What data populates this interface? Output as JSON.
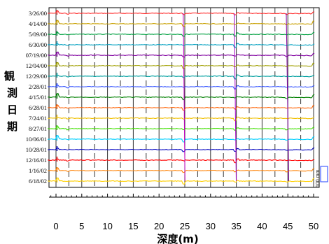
{
  "chart_data": {
    "type": "line",
    "title": "",
    "xlabel": "深度(m)",
    "ylabel_chars": [
      "観",
      "測",
      "日",
      "期"
    ],
    "x_ticks": [
      0,
      5,
      10,
      15,
      20,
      25,
      30,
      35,
      40,
      45,
      50
    ],
    "xlim": [
      -2,
      50.5
    ],
    "dashed_depths": [
      2.5,
      7.5,
      12.5,
      17.5,
      22.5,
      27.5,
      32.5,
      37.5,
      42.5,
      47.5
    ],
    "solid_depths": [
      0,
      5,
      10,
      15,
      20,
      25,
      30,
      35,
      40,
      45,
      50
    ],
    "scale_bar_label": "100 mm",
    "series": [
      {
        "name": "3/26/00",
        "color": "#ff3030"
      },
      {
        "name": "4/14/00",
        "color": "#c8a000"
      },
      {
        "name": "5/09/00",
        "color": "#00a040"
      },
      {
        "name": "6/30/00",
        "color": "#00a0c0"
      },
      {
        "name": "07/19/00",
        "color": "#8000a0"
      },
      {
        "name": "12/04/00",
        "color": "#a0a000"
      },
      {
        "name": "12/29/00",
        "color": "#00a0a0"
      },
      {
        "name": "2/28/01",
        "color": "#3050ff"
      },
      {
        "name": "4/15/01",
        "color": "#008000"
      },
      {
        "name": "6/28/01",
        "color": "#ff6000"
      },
      {
        "name": "7/24/01",
        "color": "#f0c000"
      },
      {
        "name": "8/27/01",
        "color": "#40e000"
      },
      {
        "name": "10/06/01",
        "color": "#00d0ff"
      },
      {
        "name": "10/28/01",
        "color": "#0000c0"
      },
      {
        "name": "12/16/01",
        "color": "#ff0000"
      },
      {
        "name": "1/16/02",
        "color": "#ff8000"
      },
      {
        "name": "6/18/02",
        "color": "#ffd000"
      }
    ]
  }
}
